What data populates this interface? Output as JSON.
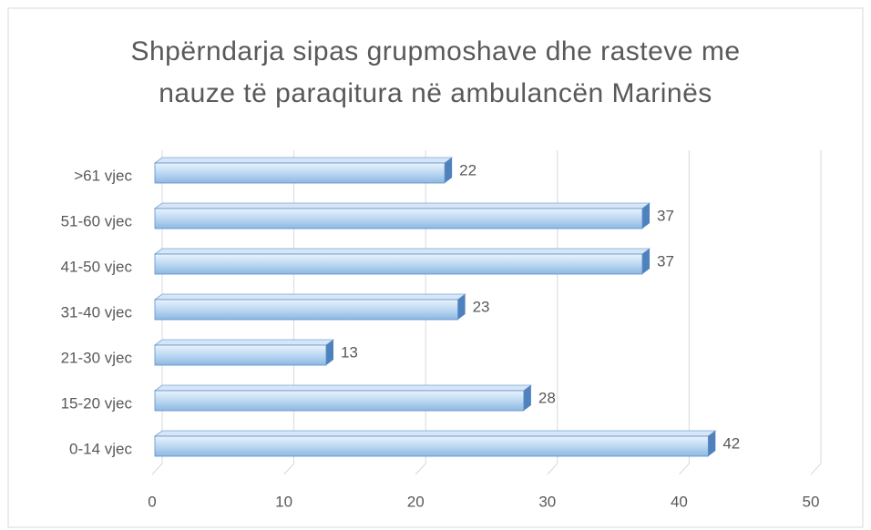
{
  "chart_data": {
    "type": "bar",
    "orientation": "horizontal",
    "title": "Shpërndarja sipas grupmoshave dhe rasteve me nauze të paraqitura në ambulancën Marinës",
    "categories": [
      "0-14 vjec",
      "15-20 vjec",
      "21-30 vjec",
      "31-40 vjec",
      "41-50 vjec",
      "51-60 vjec",
      ">61 vjec"
    ],
    "values": [
      42,
      28,
      13,
      23,
      37,
      37,
      22
    ],
    "color": "#9dc3e6",
    "xlim": [
      0,
      50
    ],
    "xticks": [
      0,
      10,
      20,
      30,
      40,
      50
    ],
    "grid": true
  }
}
